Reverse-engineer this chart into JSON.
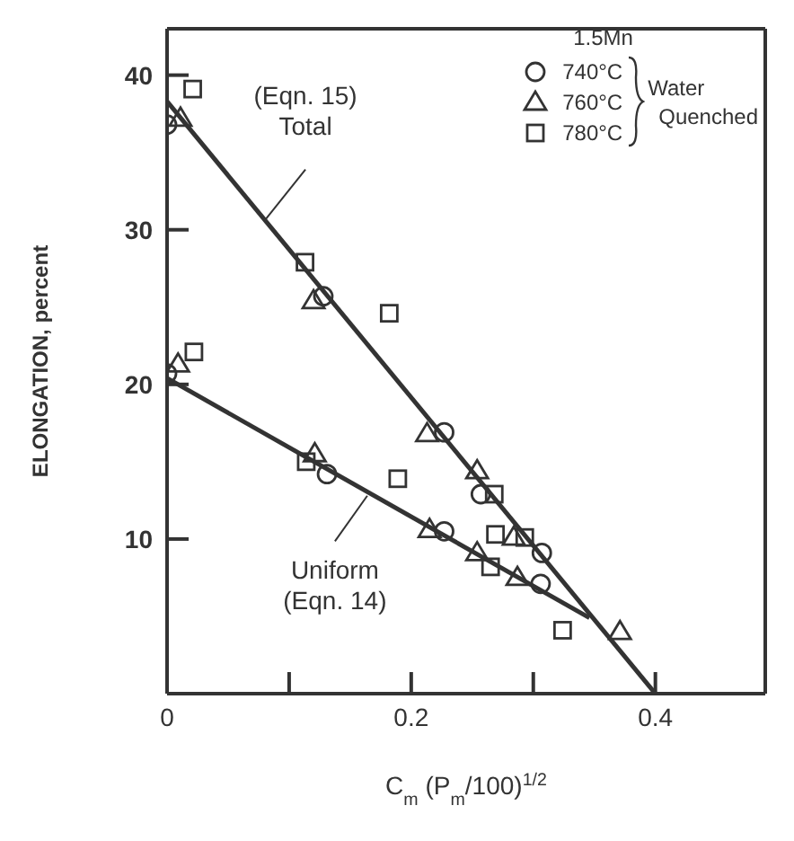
{
  "chart_data": {
    "type": "scatter",
    "xlabel": "C$_{m}$  (P$_{m}$/100)$^{1/2}$",
    "ylabel": "ELONGATION, percent",
    "legend_title": "1.5Mn",
    "legend": "top right",
    "xlim": [
      0,
      0.49
    ],
    "ylim": [
      0,
      43
    ],
    "xticks": [
      0,
      {
        "value": 0.1,
        "label": null
      },
      0.2,
      {
        "value": 0.3,
        "label": null
      },
      0.4
    ],
    "yticks": [
      10,
      20,
      30,
      40
    ],
    "annotations": [
      {
        "text": "(Eqn. 15)\nTotal",
        "x": 0.081,
        "y": 30.7
      },
      {
        "text": "Uniform\n(Eqn. 14)",
        "x": 0.164,
        "y": 12.8
      },
      "Water\nQuenched"
    ],
    "series": [
      {
        "name": "740°C",
        "color": "#333333",
        "marker": "circle",
        "x": [
          0,
          0.128,
          0,
          0.131,
          0.227,
          0.257,
          0.227,
          0.307,
          0.306
        ],
        "values": [
          36.8,
          25.7,
          20.7,
          14.2,
          16.9,
          12.9,
          10.5,
          9.1,
          7.1
        ]
      },
      {
        "name": "760°C",
        "color": "#333333",
        "marker": "triangle",
        "x": [
          0.011,
          0.12,
          0.009,
          0.121,
          0.213,
          0.254,
          0.215,
          0.254,
          0.284,
          0.287,
          0.371
        ],
        "values": [
          37.2,
          25.4,
          21.3,
          15.5,
          16.8,
          14.4,
          10.6,
          9.1,
          10.1,
          7.5,
          4.0
        ]
      },
      {
        "name": "780°C",
        "color": "#333333",
        "marker": "square",
        "x": [
          0.021,
          0.113,
          0.182,
          0.022,
          0.114,
          0.189,
          0.268,
          0.269,
          0.293,
          0.265,
          0.324
        ],
        "values": [
          39.1,
          27.9,
          24.6,
          22.1,
          15.0,
          13.9,
          12.9,
          10.3,
          10.1,
          8.2,
          4.1
        ]
      },
      {
        "type": "line",
        "color": "#333333",
        "marker": "none",
        "x": [
          0,
          0.4
        ],
        "values": [
          38.3,
          0
        ]
      },
      {
        "type": "line",
        "color": "#333333",
        "marker": "none",
        "x": [
          0,
          0.346
        ],
        "values": [
          20.4,
          4.9
        ]
      }
    ]
  }
}
